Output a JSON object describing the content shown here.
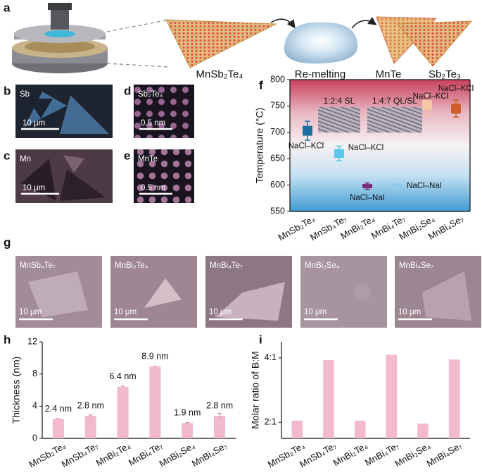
{
  "panel_labels": [
    "a",
    "b",
    "c",
    "d",
    "e",
    "f",
    "g",
    "h",
    "i"
  ],
  "schematic": {
    "labels": [
      "MnSb₂Te₄",
      "Re-melting",
      "MnTe",
      "Sb₂Te₃"
    ]
  },
  "images": [
    {
      "label": "Sb",
      "scale": "10 μm"
    },
    {
      "label": "Mn",
      "scale": "10 μm"
    },
    {
      "label": "Sb₂Te₃",
      "scale": "0.5 nm"
    },
    {
      "label": "MnTe",
      "scale": "0.5 nm"
    },
    {
      "label": "MnSb₄Te₇",
      "scale": "10 μm"
    },
    {
      "label": "MnBi₂Te₄",
      "scale": "10 μm"
    },
    {
      "label": "MnBi₄Te₇",
      "scale": "10 μm"
    },
    {
      "label": "MnBi₂Se₄",
      "scale": "10 μm"
    },
    {
      "label": "MnBi₄Se₇",
      "scale": "10 μm"
    }
  ],
  "chart_data": [
    {
      "type": "box",
      "ylabel": "Temperature (°C)",
      "categories": [
        "MnSb₂Te₄",
        "MnSb₄Te₇",
        "MnBi₂Te₄",
        "MnBi₄Te₇",
        "MnBi₂Se₄",
        "MnBi₄Se₇"
      ],
      "values": [
        703,
        660,
        598,
        598,
        752,
        745
      ],
      "errors": [
        18,
        14,
        6,
        4,
        20,
        16
      ],
      "colors": [
        "#1d6e9c",
        "#5cc8ec",
        "#7a2a78",
        "#8fcaee",
        "#f5c7a2",
        "#cf5f28"
      ],
      "labels": [
        "NaCl–KCl",
        "NaCl–KCl",
        "NaCl–NaI",
        "NaCl–NaI",
        "NaCl–KCl",
        "NaCl–KCl"
      ],
      "insets": [
        "1:2:4 SL",
        "1:4:7 QL/SL"
      ],
      "ylim": [
        550,
        800
      ],
      "yticks": [
        550,
        600,
        650,
        700,
        750,
        800
      ]
    },
    {
      "type": "bar",
      "ylabel": "Thickness (nm)",
      "categories": [
        "MnSb₂Te₄",
        "MnSb₄Te₇",
        "MnBi₂Te₄",
        "MnBi₄Te₇",
        "MnBi₂Se₄",
        "MnBi₄Se₇"
      ],
      "values": [
        2.4,
        2.8,
        6.4,
        8.9,
        1.9,
        2.8
      ],
      "value_labels": [
        "2.4 nm",
        "2.8 nm",
        "6.4 nm",
        "8.9 nm",
        "1.9 nm",
        "2.8 nm"
      ],
      "errors": [
        0.05,
        0.1,
        0.1,
        0.05,
        0.05,
        0.3
      ],
      "color": "#f2b9cf",
      "ylim": [
        0,
        12
      ],
      "yticks": [
        0,
        4,
        8,
        12
      ]
    },
    {
      "type": "bar",
      "ylabel": "Molar ratio of B:M",
      "categories": [
        "MnSb₂Te₄",
        "MnSb₄Te₇",
        "MnBi₂Te₄",
        "MnBi₄Te₇",
        "MnBi₂Se₄",
        "MnBi₄Se₇"
      ],
      "values": [
        2.05,
        3.93,
        2.05,
        4.1,
        1.96,
        3.95
      ],
      "color": "#f2b9cf",
      "ylim": [
        1.5,
        4.5
      ],
      "yticks": [
        {
          "value": 2,
          "label": "2:1"
        },
        {
          "value": 4,
          "label": "4:1"
        }
      ]
    }
  ]
}
